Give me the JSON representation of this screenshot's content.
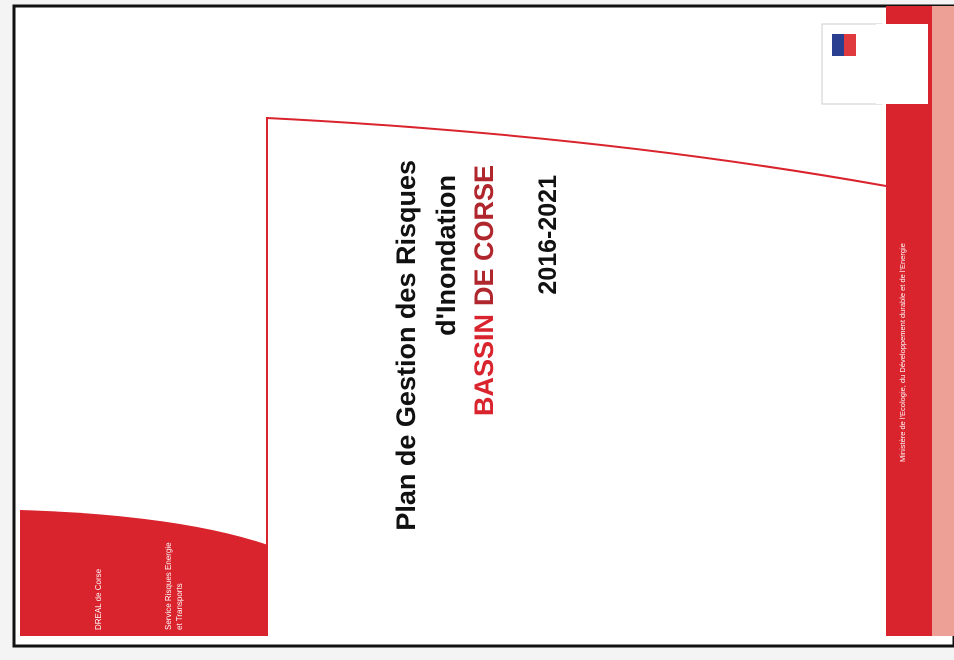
{
  "cover": {
    "title_lines": [
      "Plan de Gestion des Risques",
      "d'Inondation"
    ],
    "bassin": "BASSIN",
    "de_corse": "DE CORSE",
    "years": "2016-2021",
    "dreal": "DREAL de Corse",
    "service_lines": [
      "Service Risques Energie",
      "et Transports"
    ],
    "ministry": "Ministère de l'Ecologie, du Développement durable et de l'Energie"
  }
}
